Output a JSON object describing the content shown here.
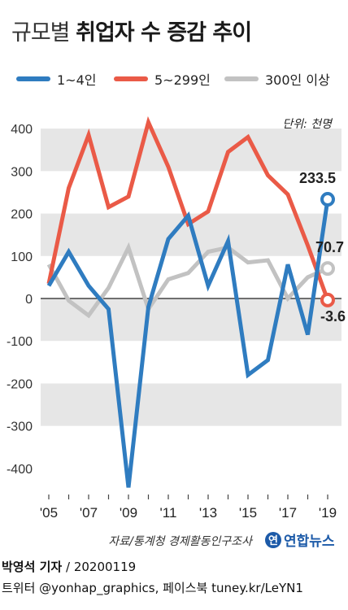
{
  "title": {
    "light": "규모별",
    "bold": "취업자 수 증감 추이"
  },
  "legend": [
    {
      "label": "1~4인",
      "color": "#2f7cc0"
    },
    {
      "label": "5~299인",
      "color": "#ea5a47"
    },
    {
      "label": "300인 이상",
      "color": "#c2c2c2"
    }
  ],
  "unit_label": "단위: 천명",
  "source": "자료/통계청 경제활동인구조사",
  "logo": {
    "mark": "연",
    "text": "연합뉴스"
  },
  "credit": {
    "name": "박영석 기자",
    "date": "20200119"
  },
  "social": "트위터 @yonhap_graphics, 페이스북 tuney.kr/LeYN1",
  "chart_data": {
    "type": "line",
    "x": [
      2005,
      2006,
      2007,
      2008,
      2009,
      2010,
      2011,
      2012,
      2013,
      2014,
      2015,
      2016,
      2017,
      2018,
      2019
    ],
    "x_tick_labels": [
      "'05",
      "'07",
      "'09",
      "'11",
      "'13",
      "'15",
      "'17",
      "'19"
    ],
    "x_tick_values": [
      2005,
      2007,
      2009,
      2011,
      2013,
      2015,
      2017,
      2019
    ],
    "ylim": [
      -450,
      450
    ],
    "y_ticks": [
      400,
      300,
      200,
      100,
      0,
      -100,
      -200,
      -300,
      -400
    ],
    "grid": "alternating bands",
    "series": [
      {
        "name": "300인 이상",
        "color": "#c2c2c2",
        "values": [
          80,
          -5,
          -40,
          25,
          120,
          -25,
          45,
          60,
          110,
          120,
          85,
          90,
          0,
          50,
          70.7
        ]
      },
      {
        "name": "5~299인",
        "color": "#ea5a47",
        "values": [
          35,
          260,
          385,
          215,
          240,
          415,
          310,
          175,
          205,
          345,
          380,
          290,
          245,
          125,
          -3.6
        ]
      },
      {
        "name": "1~4인",
        "color": "#2f7cc0",
        "values": [
          30,
          110,
          30,
          -25,
          -445,
          -20,
          140,
          195,
          30,
          135,
          -180,
          -145,
          80,
          -85,
          233.5
        ]
      }
    ],
    "end_labels": [
      {
        "series": "1~4인",
        "text": "233.5"
      },
      {
        "series": "300인 이상",
        "text": "70.7"
      },
      {
        "series": "5~299인",
        "text": "-3.6"
      }
    ]
  }
}
